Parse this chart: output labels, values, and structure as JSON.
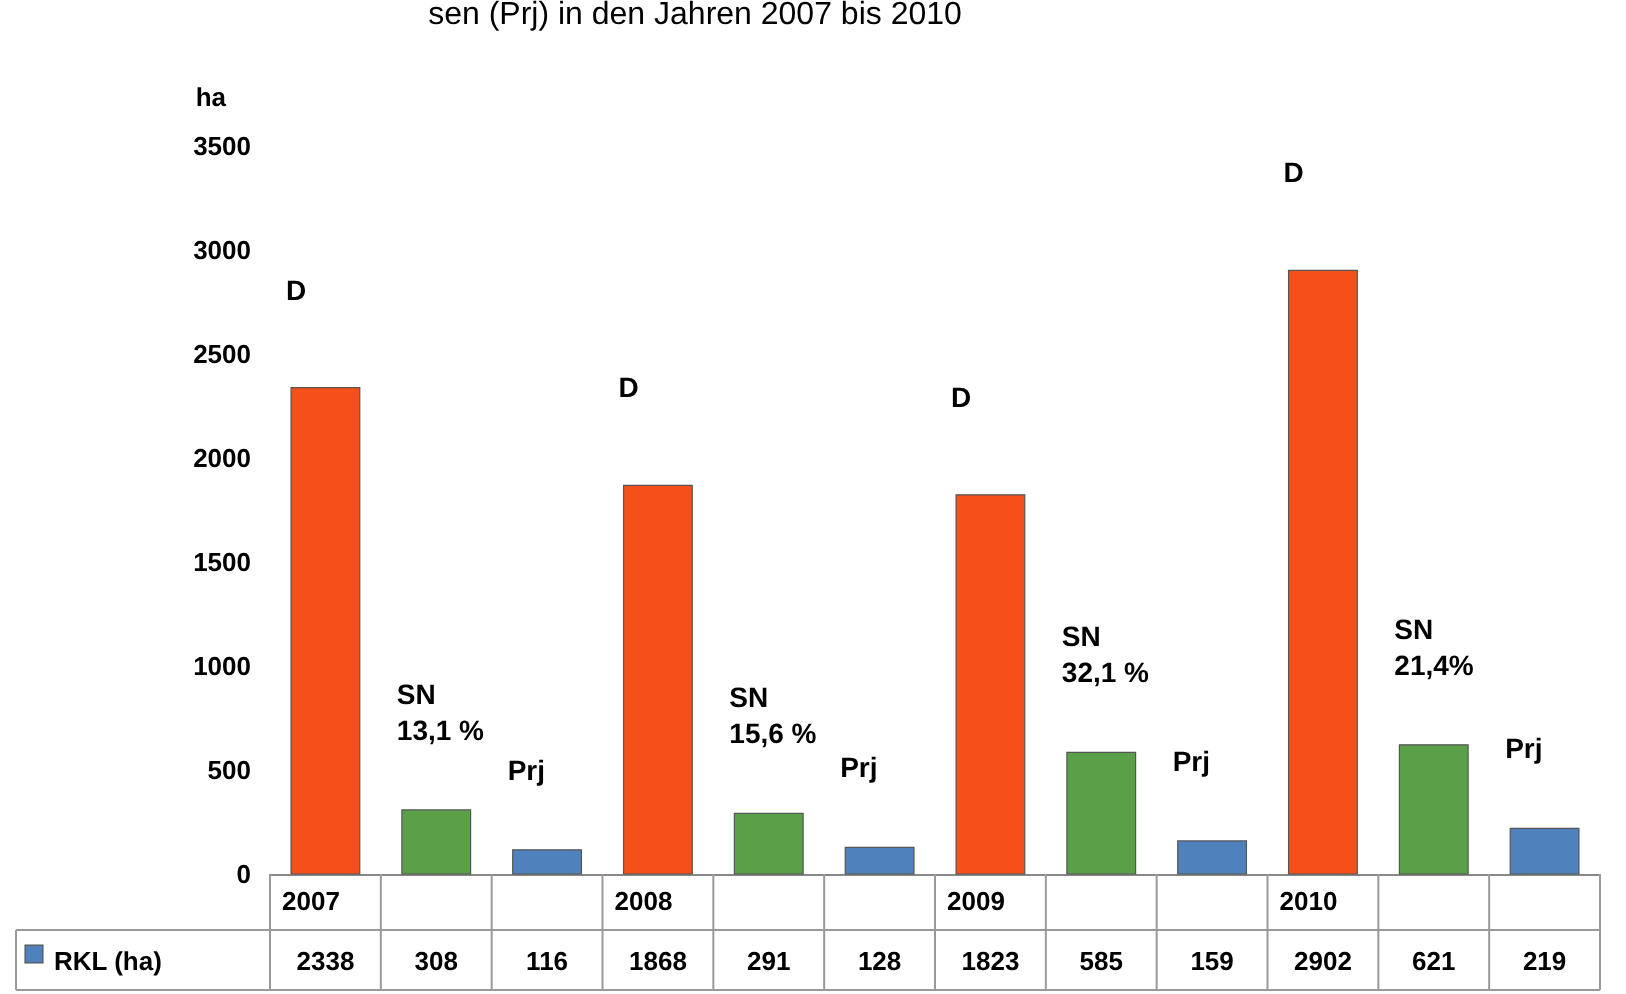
{
  "chart_data": {
    "type": "bar",
    "title": "sen (Prj) in den Jahren  2007  bis 2010",
    "ylabel": "ha",
    "categories": [
      "2007",
      null,
      null,
      "2008",
      null,
      null,
      "2009",
      null,
      null,
      "2010",
      null,
      null
    ],
    "series": [
      {
        "name": "RKL (ha)",
        "color": "#4f81bd",
        "values": [
          2338,
          308,
          116,
          1868,
          291,
          128,
          1823,
          585,
          159,
          2902,
          621,
          219
        ],
        "colors": [
          "#f5501a",
          "#5aa048",
          "#4f81bd",
          "#f5501a",
          "#5aa048",
          "#4f81bd",
          "#f5501a",
          "#5aa048",
          "#4f81bd",
          "#f5501a",
          "#5aa048",
          "#4f81bd"
        ]
      }
    ],
    "ylim": [
      0,
      3500
    ],
    "yticks": [
      0,
      500,
      1000,
      1500,
      2000,
      2500,
      3000,
      3500
    ],
    "grid": false,
    "legend": "bottom left",
    "data_labels": true,
    "annotations": [
      "D",
      "SN\n13,1 %",
      "Prj",
      "D",
      "SN\n15,6 %",
      "Prj",
      "D",
      "SN\n32,1 %",
      "Prj",
      "D",
      "SN\n21,4%",
      "Prj"
    ]
  }
}
